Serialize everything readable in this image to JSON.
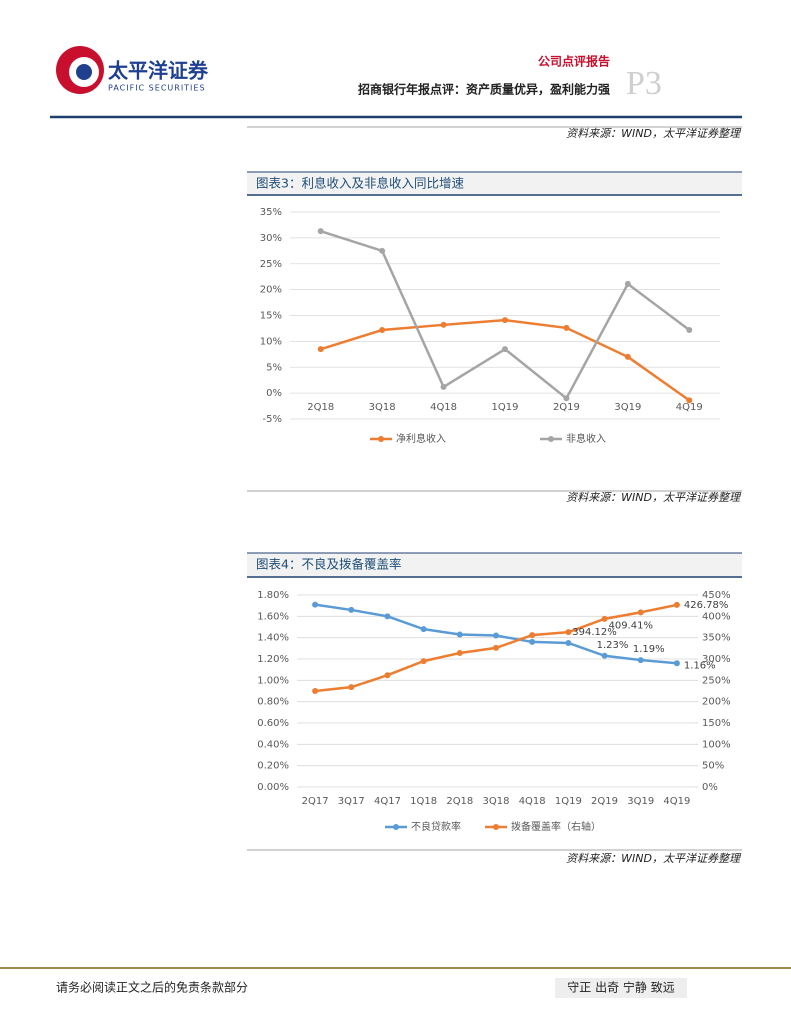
{
  "header": {
    "brand": "太平洋证券",
    "brand_en": "PACIFIC SECURITIES",
    "report_type": "公司点评报告",
    "report_title": "招商银行年报点评：资产质量优异，盈利能力强",
    "page": "P3"
  },
  "sources": [
    "资料来源：WIND，太平洋证券整理",
    "资料来源：WIND，太平洋证券整理",
    "资料来源：WIND，太平洋证券整理"
  ],
  "chart_data": [
    {
      "type": "line",
      "title": "图表3：利息收入及非息收入同比增速",
      "categories": [
        "2Q18",
        "3Q18",
        "4Q18",
        "1Q19",
        "2Q19",
        "3Q19",
        "4Q19"
      ],
      "series": [
        {
          "name": "净利息收入",
          "color": "#ed7d31",
          "values": [
            8.5,
            12.2,
            13.2,
            14.1,
            12.6,
            7.0,
            -1.4
          ]
        },
        {
          "name": "非息收入",
          "color": "#a5a5a5",
          "values": [
            31.3,
            27.5,
            1.2,
            8.5,
            -1.0,
            21.1,
            12.2
          ]
        }
      ],
      "ylim": [
        -5,
        35
      ],
      "yticks": [
        {
          "value": -5,
          "label": "-5%"
        },
        {
          "value": 0,
          "label": "0%"
        },
        {
          "value": 5,
          "label": "5%"
        },
        {
          "value": 10,
          "label": "10%"
        },
        {
          "value": 15,
          "label": "15%"
        },
        {
          "value": 20,
          "label": "20%"
        },
        {
          "value": 25,
          "label": "25%"
        },
        {
          "value": 30,
          "label": "30%"
        },
        {
          "value": 35,
          "label": "35%"
        }
      ],
      "grid": true,
      "legend": "bottom"
    },
    {
      "type": "line",
      "title": "图表4：不良及拨备覆盖率",
      "categories": [
        "2Q17",
        "3Q17",
        "4Q17",
        "1Q18",
        "2Q18",
        "3Q18",
        "4Q18",
        "1Q19",
        "2Q19",
        "3Q19",
        "4Q19"
      ],
      "series": [
        {
          "name": "不良贷款率",
          "color": "#5b9bd5",
          "values": [
            1.71,
            1.66,
            1.6,
            1.48,
            1.43,
            1.42,
            1.36,
            1.35,
            1.23,
            1.19,
            1.16
          ],
          "value_labels": [
            null,
            null,
            null,
            null,
            null,
            null,
            null,
            null,
            "1.23%",
            "1.19%",
            "1.16%"
          ]
        },
        {
          "name": "拨备覆盖率（右轴）",
          "color": "#ed7d31",
          "axis": "y2",
          "values": [
            225,
            234,
            262,
            295,
            314,
            326,
            356,
            363,
            394.12,
            409.41,
            426.78
          ],
          "value_labels": [
            null,
            null,
            null,
            null,
            null,
            null,
            null,
            null,
            "394.12%",
            "409.41%",
            "426.78%"
          ]
        }
      ],
      "ylim": [
        0,
        1.8
      ],
      "yticks": [
        {
          "value": 0,
          "label": "0.00%"
        },
        {
          "value": 0.2,
          "label": "0.20%"
        },
        {
          "value": 0.4,
          "label": "0.40%"
        },
        {
          "value": 0.6,
          "label": "0.60%"
        },
        {
          "value": 0.8,
          "label": "0.80%"
        },
        {
          "value": 1.0,
          "label": "1.00%"
        },
        {
          "value": 1.2,
          "label": "1.20%"
        },
        {
          "value": 1.4,
          "label": "1.40%"
        },
        {
          "value": 1.6,
          "label": "1.60%"
        },
        {
          "value": 1.8,
          "label": "1.80%"
        }
      ],
      "y2lim": [
        0,
        450
      ],
      "y2ticks": [
        {
          "value": 0,
          "label": "0%"
        },
        {
          "value": 50,
          "label": "50%"
        },
        {
          "value": 100,
          "label": "100%"
        },
        {
          "value": 150,
          "label": "150%"
        },
        {
          "value": 200,
          "label": "200%"
        },
        {
          "value": 250,
          "label": "250%"
        },
        {
          "value": 300,
          "label": "300%"
        },
        {
          "value": 350,
          "label": "350%"
        },
        {
          "value": 400,
          "label": "400%"
        },
        {
          "value": 450,
          "label": "450%"
        }
      ],
      "grid": true,
      "legend": "bottom"
    }
  ],
  "footer": {
    "disclaimer": "请务必阅读正文之后的免责条款部分",
    "motto": "守正 出奇 宁静 致远"
  }
}
